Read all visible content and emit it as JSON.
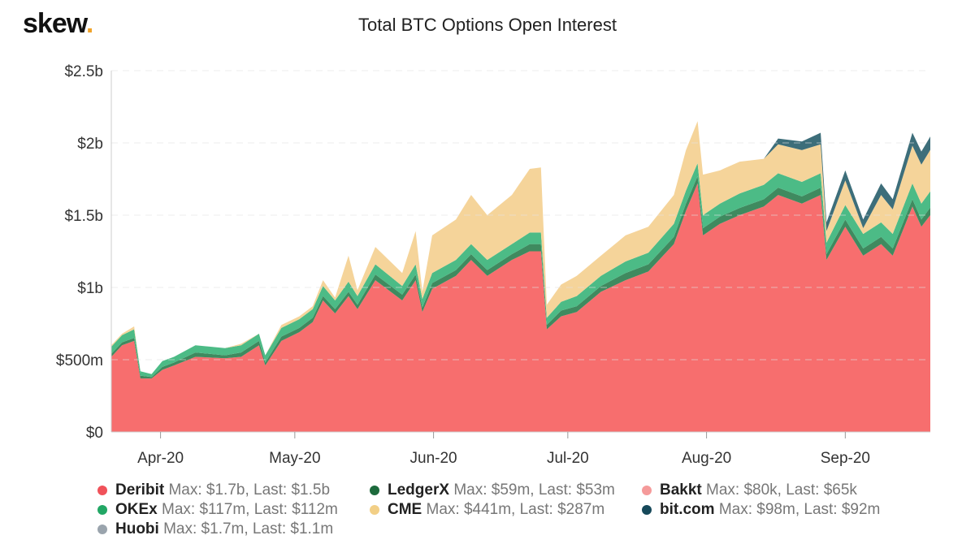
{
  "logo": {
    "text": "skew",
    "dot": "."
  },
  "chart_data": {
    "type": "area",
    "stacked": true,
    "title": "Total BTC Options Open Interest",
    "xlabel": "",
    "ylabel": "",
    "ylim": [
      0,
      2.5
    ],
    "y_unit": "billions USD",
    "yticks": [
      {
        "v": 0,
        "label": "$0"
      },
      {
        "v": 0.5,
        "label": "$500m"
      },
      {
        "v": 1,
        "label": "$1b"
      },
      {
        "v": 1.5,
        "label": "$1.5b"
      },
      {
        "v": 2,
        "label": "$2b"
      },
      {
        "v": 2.5,
        "label": "$2.5b"
      }
    ],
    "x_unit": "days since 2020-03-21",
    "xlim": [
      0,
      183
    ],
    "xticks": [
      {
        "v": 11,
        "label": "Apr-20"
      },
      {
        "v": 41,
        "label": "May-20"
      },
      {
        "v": 72,
        "label": "Jun-20"
      },
      {
        "v": 102,
        "label": "Jul-20"
      },
      {
        "v": 133,
        "label": "Aug-20"
      },
      {
        "v": 164,
        "label": "Sep-20"
      }
    ],
    "x": [
      0,
      2.4,
      5.1,
      6.5,
      9,
      11.4,
      14,
      18.8,
      25.4,
      29,
      33,
      34.4,
      38,
      42,
      45,
      47.3,
      50,
      53,
      55,
      59,
      65,
      68,
      69.5,
      71.7,
      77,
      80.4,
      84,
      89.5,
      93.5,
      96,
      97.3,
      100.5,
      104,
      109.4,
      114.9,
      120,
      125.7,
      128.4,
      131,
      132.2,
      136,
      140.4,
      145.8,
      149,
      154.3,
      158.5,
      159.8,
      164,
      168,
      172,
      174.6,
      179,
      181,
      183
    ],
    "series": [
      {
        "name": "Deribit",
        "color": "#f76e6e",
        "stats": "Max: $1.7b, Last: $1.5b",
        "values": [
          0.52,
          0.6,
          0.63,
          0.37,
          0.37,
          0.43,
          0.46,
          0.52,
          0.51,
          0.52,
          0.6,
          0.46,
          0.63,
          0.69,
          0.76,
          0.91,
          0.82,
          0.94,
          0.85,
          1.05,
          0.91,
          1.05,
          0.83,
          0.99,
          1.08,
          1.19,
          1.08,
          1.19,
          1.25,
          1.25,
          0.71,
          0.8,
          0.83,
          0.97,
          1.05,
          1.11,
          1.3,
          1.53,
          1.72,
          1.36,
          1.44,
          1.5,
          1.56,
          1.64,
          1.58,
          1.64,
          1.19,
          1.42,
          1.22,
          1.3,
          1.22,
          1.56,
          1.42,
          1.5
        ]
      },
      {
        "name": "LedgerX",
        "color": "#3f8a5f",
        "stats": "Max: $59m, Last: $53m",
        "values": [
          0.02,
          0.02,
          0.02,
          0.02,
          0.01,
          0.02,
          0.02,
          0.03,
          0.02,
          0.03,
          0.03,
          0.02,
          0.03,
          0.03,
          0.03,
          0.03,
          0.03,
          0.03,
          0.03,
          0.04,
          0.04,
          0.04,
          0.03,
          0.04,
          0.04,
          0.04,
          0.04,
          0.04,
          0.05,
          0.05,
          0.03,
          0.04,
          0.04,
          0.04,
          0.05,
          0.05,
          0.05,
          0.05,
          0.05,
          0.05,
          0.05,
          0.05,
          0.05,
          0.05,
          0.05,
          0.05,
          0.04,
          0.05,
          0.05,
          0.05,
          0.05,
          0.05,
          0.05,
          0.053
        ]
      },
      {
        "name": "OKEx",
        "color": "#4cbb86",
        "stats": "Max: $117m, Last: $112m",
        "values": [
          0.05,
          0.05,
          0.06,
          0.03,
          0.02,
          0.04,
          0.04,
          0.05,
          0.05,
          0.05,
          0.05,
          0.05,
          0.06,
          0.06,
          0.06,
          0.07,
          0.06,
          0.07,
          0.06,
          0.07,
          0.06,
          0.07,
          0.06,
          0.07,
          0.07,
          0.07,
          0.07,
          0.07,
          0.08,
          0.08,
          0.05,
          0.06,
          0.07,
          0.07,
          0.08,
          0.08,
          0.09,
          0.09,
          0.09,
          0.09,
          0.09,
          0.1,
          0.1,
          0.1,
          0.1,
          0.1,
          0.08,
          0.1,
          0.1,
          0.1,
          0.1,
          0.11,
          0.11,
          0.112
        ]
      },
      {
        "name": "CME",
        "color": "#f5d49a",
        "stats": "Max: $441m, Last: $287m",
        "values": [
          0.01,
          0.01,
          0.02,
          0,
          0,
          0,
          0,
          0,
          0,
          0.01,
          0,
          0,
          0.02,
          0.02,
          0.02,
          0.04,
          0.02,
          0.18,
          0.04,
          0.12,
          0.09,
          0.23,
          0.05,
          0.26,
          0.28,
          0.34,
          0.31,
          0.34,
          0.44,
          0.45,
          0.09,
          0.12,
          0.14,
          0.14,
          0.18,
          0.18,
          0.2,
          0.28,
          0.29,
          0.28,
          0.23,
          0.22,
          0.18,
          0.2,
          0.22,
          0.2,
          0.08,
          0.17,
          0.04,
          0.19,
          0.17,
          0.26,
          0.27,
          0.287
        ]
      },
      {
        "name": "bit.com",
        "color": "#3d6e7a",
        "stats": "Max: $98m, Last: $92m",
        "values": [
          0,
          0,
          0,
          0,
          0,
          0,
          0,
          0,
          0,
          0,
          0,
          0,
          0,
          0,
          0,
          0,
          0,
          0,
          0,
          0,
          0,
          0,
          0,
          0,
          0,
          0,
          0,
          0,
          0,
          0,
          0,
          0,
          0,
          0,
          0,
          0,
          0,
          0,
          0,
          0,
          0,
          0,
          0,
          0.04,
          0.06,
          0.08,
          0.06,
          0.07,
          0.06,
          0.08,
          0.07,
          0.09,
          0.09,
          0.092
        ]
      }
    ],
    "legend": [
      {
        "name": "Deribit",
        "color": "#f0525a",
        "stats": "Max: $1.7b, Last: $1.5b"
      },
      {
        "name": "LedgerX",
        "color": "#1d6a3c",
        "stats": "Max: $59m, Last: $53m"
      },
      {
        "name": "Bakkt",
        "color": "#f59a9a",
        "stats": "Max: $80k, Last: $65k"
      },
      {
        "name": "OKEx",
        "color": "#22a765",
        "stats": "Max: $117m, Last: $112m"
      },
      {
        "name": "CME",
        "color": "#f2cf86",
        "stats": "Max: $441m, Last: $287m"
      },
      {
        "name": "bit.com",
        "color": "#16495a",
        "stats": "Max: $98m, Last: $92m"
      },
      {
        "name": "Huobi",
        "color": "#9aa4ad",
        "stats": "Max: $1.7m, Last: $1.1m"
      }
    ],
    "legend_position": "bottom"
  }
}
